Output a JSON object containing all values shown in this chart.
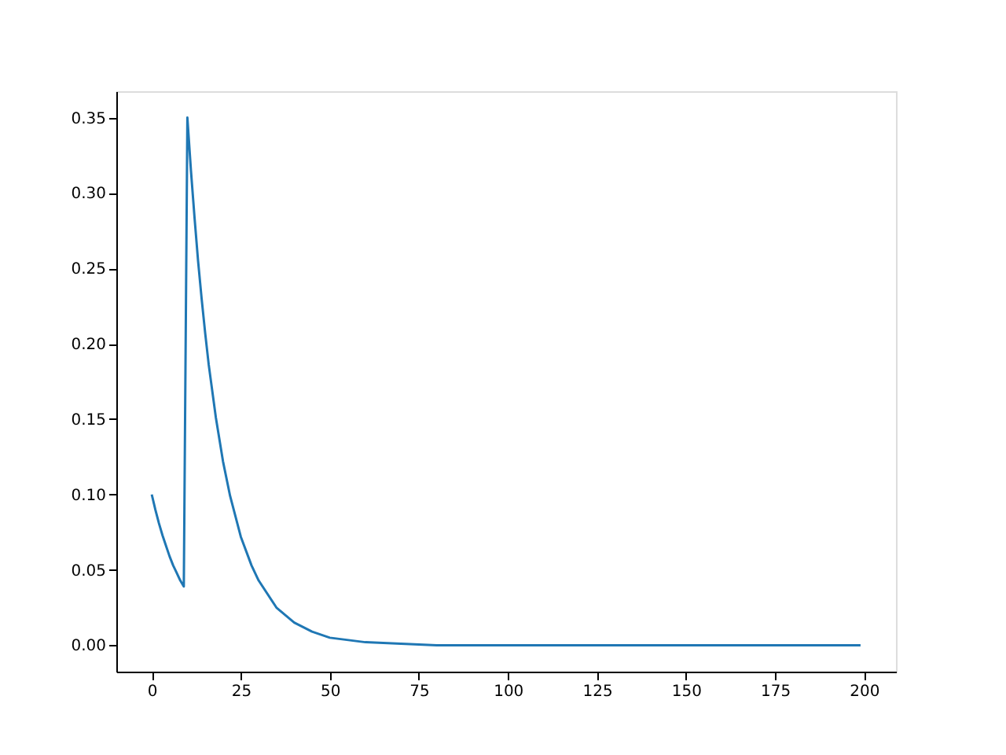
{
  "chart_data": {
    "type": "line",
    "x": [
      0,
      1,
      2,
      3,
      4,
      5,
      6,
      7,
      8,
      9,
      10,
      11,
      12,
      13,
      14,
      15,
      16,
      18,
      20,
      22,
      25,
      28,
      30,
      35,
      40,
      45,
      50,
      60,
      70,
      80,
      100,
      150,
      199
    ],
    "series": [
      {
        "color": "#1f77b4",
        "values": [
          0.1,
          0.09,
          0.081,
          0.073,
          0.066,
          0.059,
          0.053,
          0.048,
          0.043,
          0.039,
          0.35,
          0.315,
          0.284,
          0.255,
          0.23,
          0.207,
          0.186,
          0.151,
          0.122,
          0.099,
          0.072,
          0.053,
          0.043,
          0.025,
          0.015,
          0.009,
          0.005,
          0.002,
          0.001,
          0.0,
          0.0,
          0.0,
          0.0
        ]
      }
    ],
    "xlim": [
      -9.95,
      208.95
    ],
    "ylim": [
      -0.0175,
      0.3675
    ],
    "xticks": [
      0,
      25,
      50,
      75,
      100,
      125,
      150,
      175,
      200
    ],
    "yticks": [
      {
        "value": 0,
        "label": "0.00"
      },
      {
        "value": 0.05,
        "label": "0.05"
      },
      {
        "value": 0.1,
        "label": "0.10"
      },
      {
        "value": 0.15,
        "label": "0.15"
      },
      {
        "value": 0.2,
        "label": "0.20"
      },
      {
        "value": 0.25,
        "label": "0.25"
      },
      {
        "value": 0.3,
        "label": "0.30"
      },
      {
        "value": 0.35,
        "label": "0.35"
      }
    ],
    "grid": false,
    "marker": "none",
    "line_style": "solid"
  }
}
